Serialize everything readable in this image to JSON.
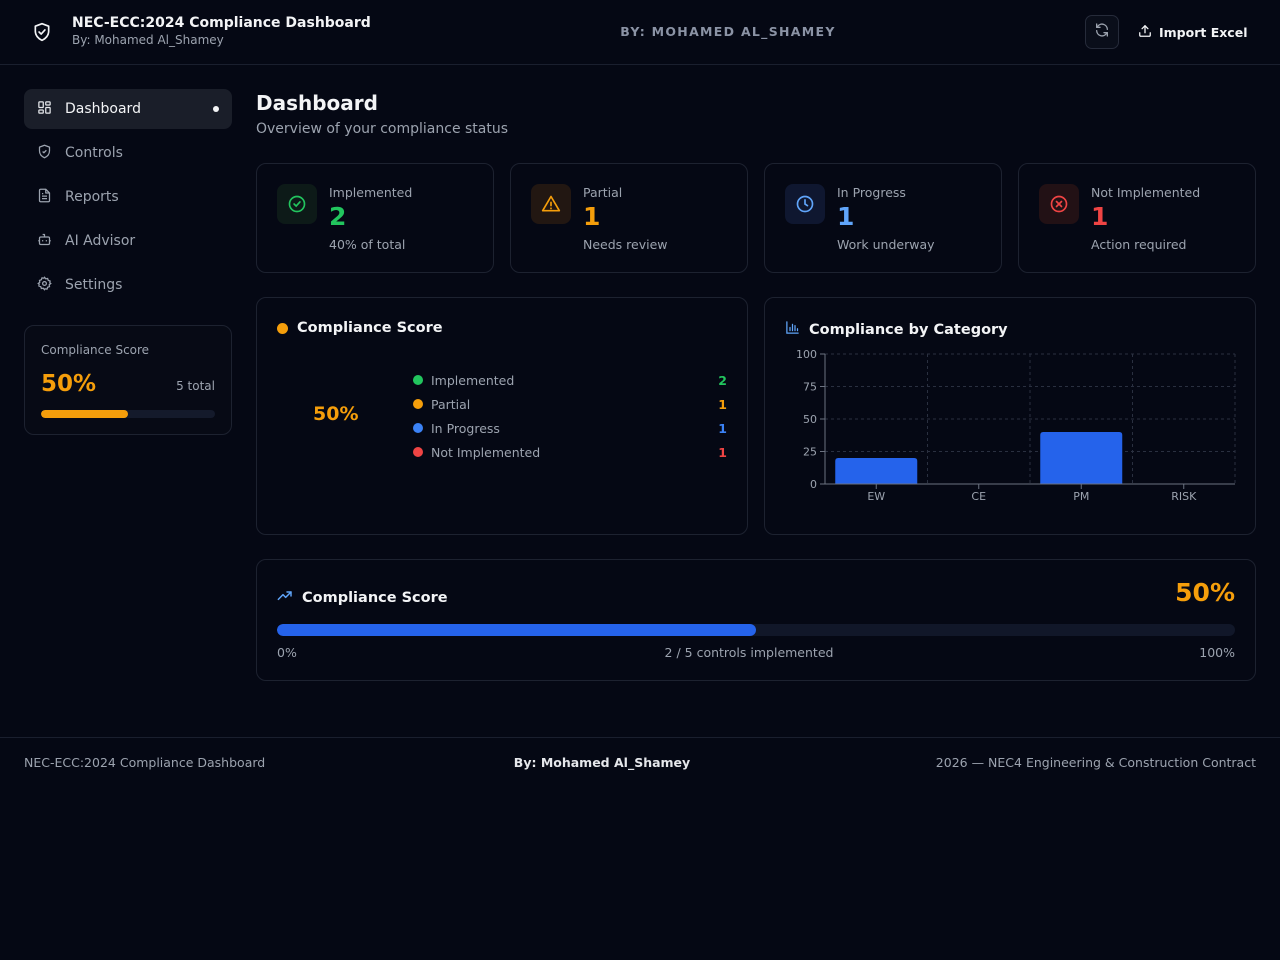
{
  "header": {
    "title": "NEC-ECC:2024 Compliance Dashboard",
    "subtitle": "By: Mohamed Al_Shamey",
    "center_byline": "BY: MOHAMED AL_SHAMEY",
    "import_label": "Import Excel",
    "logo_icon": "shield-check-icon",
    "refresh_icon": "refresh-icon",
    "import_icon": "upload-icon"
  },
  "sidebar": {
    "items": [
      {
        "label": "Dashboard",
        "icon": "grid-icon",
        "active": true
      },
      {
        "label": "Controls",
        "icon": "shield-icon",
        "active": false
      },
      {
        "label": "Reports",
        "icon": "document-icon",
        "active": false
      },
      {
        "label": "AI Advisor",
        "icon": "bot-icon",
        "active": false
      },
      {
        "label": "Settings",
        "icon": "gear-icon",
        "active": false
      }
    ],
    "score": {
      "label": "Compliance Score",
      "percent": "50%",
      "total": "5 total",
      "fraction": 0.5
    }
  },
  "main": {
    "title": "Dashboard",
    "subtitle": "Overview of your compliance status"
  },
  "stats": [
    {
      "label": "Implemented",
      "value": "2",
      "note": "40% of total",
      "color": "#22c55e",
      "bg": "#0d1a18",
      "icon": "check-circle-icon"
    },
    {
      "label": "Partial",
      "value": "1",
      "note": "Needs review",
      "color": "#f59e0b",
      "bg": "#221712",
      "icon": "warning-icon"
    },
    {
      "label": "In Progress",
      "value": "1",
      "note": "Work underway",
      "color": "#60a5fa",
      "bg": "#0f1730",
      "icon": "clock-icon"
    },
    {
      "label": "Not Implemented",
      "value": "1",
      "note": "Action required",
      "color": "#ef4444",
      "bg": "#221115",
      "icon": "x-circle-icon"
    }
  ],
  "score_panel": {
    "title": "Compliance Score",
    "value": "50%",
    "legend": [
      {
        "label": "Implemented",
        "value": "2",
        "color": "#22c55e"
      },
      {
        "label": "Partial",
        "value": "1",
        "color": "#f59e0b"
      },
      {
        "label": "In Progress",
        "value": "1",
        "color": "#3b82f6"
      },
      {
        "label": "Not Implemented",
        "value": "1",
        "color": "#ef4444"
      }
    ]
  },
  "category_panel": {
    "title": "Compliance by Category",
    "icon": "bar-chart-icon"
  },
  "chart_data": {
    "type": "bar",
    "categories": [
      "EW",
      "CE",
      "PM",
      "RISK"
    ],
    "values": [
      20,
      0,
      40,
      0
    ],
    "yticks": [
      0,
      25,
      50,
      75,
      100
    ],
    "ylim": [
      0,
      100
    ],
    "grid": true,
    "bar_color": "#2563eb"
  },
  "progress_panel": {
    "title": "Compliance Score",
    "value": "50%",
    "fraction": 0.5,
    "min_label": "0%",
    "max_label": "100%",
    "center_label": "2 / 5 controls implemented",
    "icon": "trending-up-icon"
  },
  "footer": {
    "left": "NEC-ECC:2024 Compliance Dashboard",
    "center": "By: Mohamed Al_Shamey",
    "right": "2026 — NEC4 Engineering & Construction Contract"
  }
}
